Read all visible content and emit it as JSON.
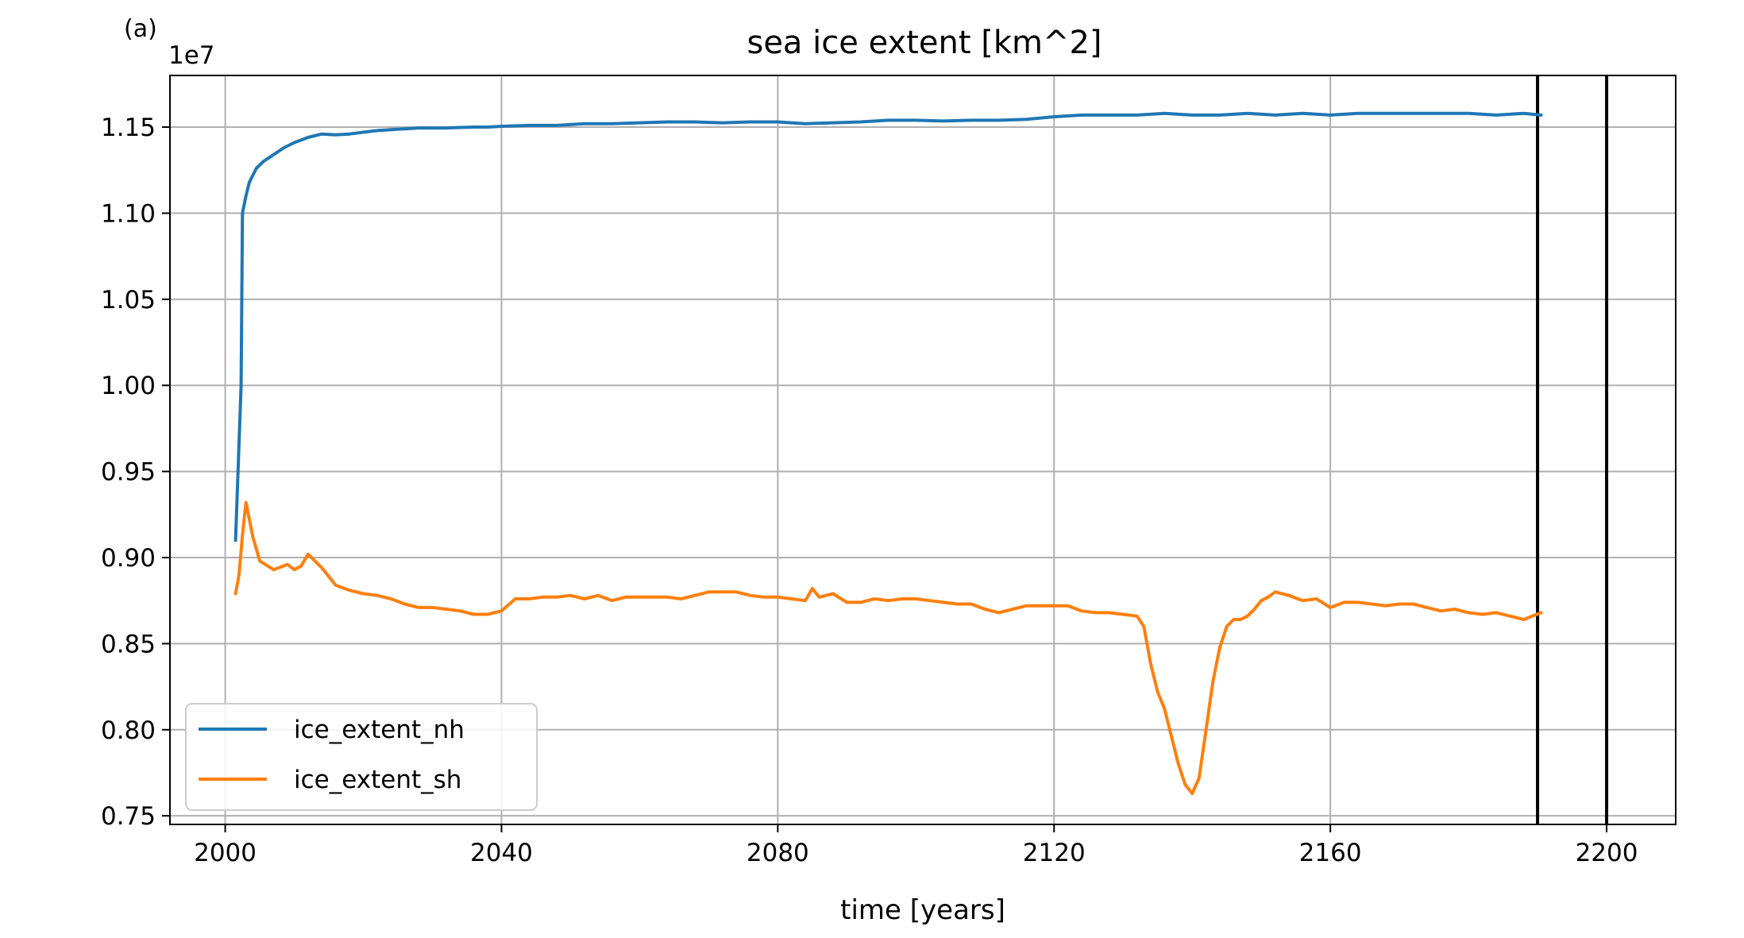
{
  "panel_label": "(a)",
  "chart_data": {
    "type": "line",
    "title": "sea ice extent [km^2]",
    "xlabel": "time [years]",
    "ylabel": "",
    "y_offset_label": "1e7",
    "y_scale": 10000000,
    "xlim": [
      1992,
      2210
    ],
    "ylim": [
      0.745,
      1.18
    ],
    "xticks": [
      2000,
      2040,
      2080,
      2120,
      2160,
      2200
    ],
    "yticks": [
      0.75,
      0.8,
      0.85,
      0.9,
      0.95,
      1.0,
      1.05,
      1.1,
      1.15
    ],
    "ytick_labels": [
      "0.75",
      "0.80",
      "0.85",
      "0.90",
      "0.95",
      "1.00",
      "1.05",
      "1.10",
      "1.15"
    ],
    "grid": true,
    "legend_position": "lower-left",
    "vlines": [
      2190,
      2200
    ],
    "series": [
      {
        "name": "ice_extent_nh",
        "color": "#1f77b4",
        "points": [
          [
            2001.5,
            0.91
          ],
          [
            2002.3,
            1.0
          ],
          [
            2002.5,
            1.1
          ],
          [
            2003,
            1.11
          ],
          [
            2003.5,
            1.118
          ],
          [
            2004.5,
            1.126
          ],
          [
            2005.5,
            1.13
          ],
          [
            2007,
            1.134
          ],
          [
            2008.5,
            1.138
          ],
          [
            2010,
            1.141
          ],
          [
            2012,
            1.144
          ],
          [
            2014,
            1.146
          ],
          [
            2016,
            1.1455
          ],
          [
            2018,
            1.146
          ],
          [
            2020,
            1.147
          ],
          [
            2022,
            1.148
          ],
          [
            2024,
            1.1485
          ],
          [
            2026,
            1.149
          ],
          [
            2028,
            1.1495
          ],
          [
            2030,
            1.1495
          ],
          [
            2032,
            1.1495
          ],
          [
            2034,
            1.1498
          ],
          [
            2036,
            1.15
          ],
          [
            2038,
            1.15
          ],
          [
            2040,
            1.1505
          ],
          [
            2044,
            1.151
          ],
          [
            2048,
            1.151
          ],
          [
            2052,
            1.152
          ],
          [
            2056,
            1.152
          ],
          [
            2060,
            1.1525
          ],
          [
            2064,
            1.153
          ],
          [
            2068,
            1.153
          ],
          [
            2072,
            1.1525
          ],
          [
            2076,
            1.153
          ],
          [
            2080,
            1.153
          ],
          [
            2084,
            1.152
          ],
          [
            2088,
            1.1525
          ],
          [
            2092,
            1.153
          ],
          [
            2096,
            1.154
          ],
          [
            2100,
            1.154
          ],
          [
            2104,
            1.1535
          ],
          [
            2108,
            1.154
          ],
          [
            2112,
            1.154
          ],
          [
            2116,
            1.1545
          ],
          [
            2120,
            1.156
          ],
          [
            2124,
            1.157
          ],
          [
            2128,
            1.157
          ],
          [
            2132,
            1.157
          ],
          [
            2136,
            1.158
          ],
          [
            2140,
            1.157
          ],
          [
            2144,
            1.157
          ],
          [
            2148,
            1.158
          ],
          [
            2152,
            1.157
          ],
          [
            2156,
            1.158
          ],
          [
            2160,
            1.157
          ],
          [
            2164,
            1.158
          ],
          [
            2168,
            1.158
          ],
          [
            2172,
            1.158
          ],
          [
            2176,
            1.158
          ],
          [
            2180,
            1.158
          ],
          [
            2184,
            1.157
          ],
          [
            2188,
            1.158
          ],
          [
            2190.5,
            1.157
          ]
        ]
      },
      {
        "name": "ice_extent_sh",
        "color": "#ff7f0e",
        "points": [
          [
            2001.5,
            0.879
          ],
          [
            2002,
            0.89
          ],
          [
            2002.5,
            0.913
          ],
          [
            2003,
            0.932
          ],
          [
            2004,
            0.912
          ],
          [
            2005,
            0.898
          ],
          [
            2007,
            0.893
          ],
          [
            2009,
            0.896
          ],
          [
            2010,
            0.893
          ],
          [
            2011,
            0.895
          ],
          [
            2012,
            0.902
          ],
          [
            2013,
            0.898
          ],
          [
            2014,
            0.894
          ],
          [
            2016,
            0.884
          ],
          [
            2018,
            0.881
          ],
          [
            2020,
            0.879
          ],
          [
            2022,
            0.878
          ],
          [
            2024,
            0.876
          ],
          [
            2026,
            0.873
          ],
          [
            2028,
            0.871
          ],
          [
            2030,
            0.871
          ],
          [
            2032,
            0.87
          ],
          [
            2034,
            0.869
          ],
          [
            2036,
            0.867
          ],
          [
            2038,
            0.867
          ],
          [
            2040,
            0.869
          ],
          [
            2042,
            0.876
          ],
          [
            2044,
            0.876
          ],
          [
            2046,
            0.877
          ],
          [
            2048,
            0.877
          ],
          [
            2050,
            0.878
          ],
          [
            2052,
            0.876
          ],
          [
            2054,
            0.878
          ],
          [
            2056,
            0.875
          ],
          [
            2058,
            0.877
          ],
          [
            2060,
            0.877
          ],
          [
            2064,
            0.877
          ],
          [
            2066,
            0.876
          ],
          [
            2068,
            0.878
          ],
          [
            2070,
            0.88
          ],
          [
            2074,
            0.88
          ],
          [
            2076,
            0.878
          ],
          [
            2078,
            0.877
          ],
          [
            2080,
            0.877
          ],
          [
            2082,
            0.876
          ],
          [
            2084,
            0.875
          ],
          [
            2085,
            0.882
          ],
          [
            2086,
            0.877
          ],
          [
            2088,
            0.879
          ],
          [
            2090,
            0.874
          ],
          [
            2092,
            0.874
          ],
          [
            2094,
            0.876
          ],
          [
            2096,
            0.875
          ],
          [
            2098,
            0.876
          ],
          [
            2100,
            0.876
          ],
          [
            2102,
            0.875
          ],
          [
            2104,
            0.874
          ],
          [
            2106,
            0.873
          ],
          [
            2108,
            0.873
          ],
          [
            2110,
            0.87
          ],
          [
            2112,
            0.868
          ],
          [
            2114,
            0.87
          ],
          [
            2116,
            0.872
          ],
          [
            2118,
            0.872
          ],
          [
            2120,
            0.872
          ],
          [
            2122,
            0.872
          ],
          [
            2124,
            0.869
          ],
          [
            2126,
            0.868
          ],
          [
            2128,
            0.868
          ],
          [
            2130,
            0.867
          ],
          [
            2132,
            0.866
          ],
          [
            2133,
            0.86
          ],
          [
            2134,
            0.838
          ],
          [
            2135,
            0.822
          ],
          [
            2136,
            0.812
          ],
          [
            2137,
            0.796
          ],
          [
            2138,
            0.78
          ],
          [
            2139,
            0.768
          ],
          [
            2140,
            0.763
          ],
          [
            2141,
            0.772
          ],
          [
            2142,
            0.8
          ],
          [
            2143,
            0.828
          ],
          [
            2144,
            0.848
          ],
          [
            2145,
            0.86
          ],
          [
            2146,
            0.864
          ],
          [
            2147,
            0.864
          ],
          [
            2148,
            0.866
          ],
          [
            2149,
            0.87
          ],
          [
            2150,
            0.875
          ],
          [
            2151,
            0.877
          ],
          [
            2152,
            0.88
          ],
          [
            2154,
            0.878
          ],
          [
            2156,
            0.875
          ],
          [
            2158,
            0.876
          ],
          [
            2160,
            0.871
          ],
          [
            2162,
            0.874
          ],
          [
            2164,
            0.874
          ],
          [
            2166,
            0.873
          ],
          [
            2168,
            0.872
          ],
          [
            2170,
            0.873
          ],
          [
            2172,
            0.873
          ],
          [
            2174,
            0.871
          ],
          [
            2176,
            0.869
          ],
          [
            2178,
            0.87
          ],
          [
            2180,
            0.868
          ],
          [
            2182,
            0.867
          ],
          [
            2184,
            0.868
          ],
          [
            2186,
            0.866
          ],
          [
            2188,
            0.864
          ],
          [
            2190.5,
            0.868
          ]
        ]
      }
    ]
  }
}
